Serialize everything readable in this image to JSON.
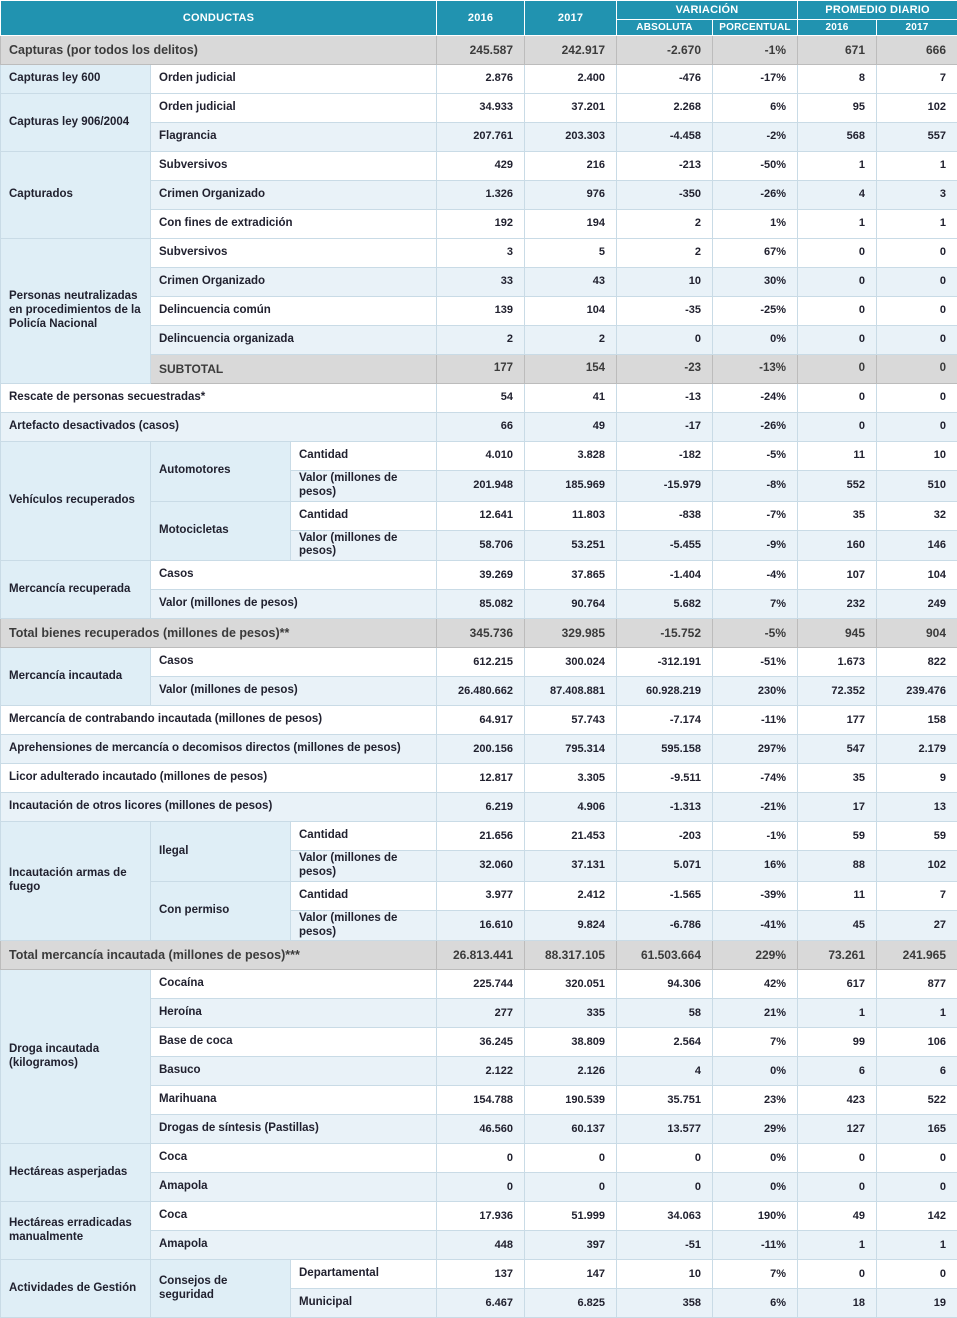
{
  "colors": {
    "header_bg": "#2193b0",
    "header_text": "#ffffff",
    "total_row_bg": "#d9d9d9",
    "stripe_bg": "#e9f2f8",
    "group_label_bg": "#dfeef6"
  },
  "table": {
    "header": {
      "conductas": "CONDUCTAS",
      "col_2016": "2016",
      "col_2017": "2017",
      "variacion": "VARIACIÓN",
      "absoluta": "ABSOLUTA",
      "porcentual": "PORCENTUAL",
      "promedio_diario": "PROMEDIO DIARIO",
      "prom_2016": "2016",
      "prom_2017": "2017"
    },
    "rows": [
      {
        "style": "total",
        "labels": [
          {
            "text": "Capturas (por todos los delitos)",
            "colspan": 3
          }
        ],
        "values": [
          "245.587",
          "242.917",
          "-2.670",
          "-1%",
          "671",
          "666"
        ]
      },
      {
        "labels": [
          {
            "text": "Capturas ley 600",
            "kind": "g"
          },
          {
            "text": "Orden judicial",
            "colspan": 2
          }
        ],
        "values": [
          "2.876",
          "2.400",
          "-476",
          "-17%",
          "8",
          "7"
        ]
      },
      {
        "labels": [
          {
            "text": "Capturas ley 906/2004",
            "kind": "g",
            "rowspan": 2
          },
          {
            "text": "Orden judicial",
            "colspan": 2
          }
        ],
        "values": [
          "34.933",
          "37.201",
          "2.268",
          "6%",
          "95",
          "102"
        ]
      },
      {
        "labels": [
          {
            "text": "Flagrancia",
            "colspan": 2
          }
        ],
        "values": [
          "207.761",
          "203.303",
          "-4.458",
          "-2%",
          "568",
          "557"
        ]
      },
      {
        "labels": [
          {
            "text": "Capturados",
            "kind": "g",
            "rowspan": 3
          },
          {
            "text": "Subversivos",
            "colspan": 2
          }
        ],
        "values": [
          "429",
          "216",
          "-213",
          "-50%",
          "1",
          "1"
        ]
      },
      {
        "labels": [
          {
            "text": "Crimen Organizado",
            "colspan": 2
          }
        ],
        "values": [
          "1.326",
          "976",
          "-350",
          "-26%",
          "4",
          "3"
        ]
      },
      {
        "labels": [
          {
            "text": "Con fines de extradición",
            "colspan": 2
          }
        ],
        "values": [
          "192",
          "194",
          "2",
          "1%",
          "1",
          "1"
        ]
      },
      {
        "labels": [
          {
            "text": "Personas neutralizadas en procedimientos de la Policía Nacional",
            "kind": "g",
            "rowspan": 5
          },
          {
            "text": "Subversivos",
            "colspan": 2
          }
        ],
        "values": [
          "3",
          "5",
          "2",
          "67%",
          "0",
          "0"
        ]
      },
      {
        "labels": [
          {
            "text": "Crimen Organizado",
            "colspan": 2
          }
        ],
        "values": [
          "33",
          "43",
          "10",
          "30%",
          "0",
          "0"
        ]
      },
      {
        "labels": [
          {
            "text": "Delincuencia común",
            "colspan": 2
          }
        ],
        "values": [
          "139",
          "104",
          "-35",
          "-25%",
          "0",
          "0"
        ]
      },
      {
        "labels": [
          {
            "text": "Delincuencia organizada",
            "colspan": 2
          }
        ],
        "values": [
          "2",
          "2",
          "0",
          "0%",
          "0",
          "0"
        ]
      },
      {
        "style": "subtotal",
        "labels": [
          {
            "text": "SUBTOTAL",
            "colspan": 2
          }
        ],
        "values": [
          "177",
          "154",
          "-23",
          "-13%",
          "0",
          "0"
        ]
      },
      {
        "labels": [
          {
            "text": "Rescate de personas secuestradas*",
            "colspan": 3
          }
        ],
        "values": [
          "54",
          "41",
          "-13",
          "-24%",
          "0",
          "0"
        ]
      },
      {
        "labels": [
          {
            "text": "Artefacto desactivados (casos)",
            "colspan": 3
          }
        ],
        "values": [
          "66",
          "49",
          "-17",
          "-26%",
          "0",
          "0"
        ]
      },
      {
        "labels": [
          {
            "text": "Vehículos recuperados",
            "kind": "g",
            "rowspan": 4
          },
          {
            "text": "Automotores",
            "kind": "g",
            "rowspan": 2
          },
          {
            "text": "Cantidad"
          }
        ],
        "values": [
          "4.010",
          "3.828",
          "-182",
          "-5%",
          "11",
          "10"
        ]
      },
      {
        "labels": [
          {
            "text": "Valor (millones de pesos)"
          }
        ],
        "values": [
          "201.948",
          "185.969",
          "-15.979",
          "-8%",
          "552",
          "510"
        ]
      },
      {
        "labels": [
          {
            "text": "Motocicletas",
            "kind": "g",
            "rowspan": 2
          },
          {
            "text": "Cantidad"
          }
        ],
        "values": [
          "12.641",
          "11.803",
          "-838",
          "-7%",
          "35",
          "32"
        ]
      },
      {
        "labels": [
          {
            "text": "Valor (millones de pesos)"
          }
        ],
        "values": [
          "58.706",
          "53.251",
          "-5.455",
          "-9%",
          "160",
          "146"
        ]
      },
      {
        "labels": [
          {
            "text": "Mercancía recuperada",
            "kind": "g",
            "rowspan": 2
          },
          {
            "text": "Casos",
            "colspan": 2
          }
        ],
        "values": [
          "39.269",
          "37.865",
          "-1.404",
          "-4%",
          "107",
          "104"
        ]
      },
      {
        "labels": [
          {
            "text": "Valor (millones de pesos)",
            "colspan": 2
          }
        ],
        "values": [
          "85.082",
          "90.764",
          "5.682",
          "7%",
          "232",
          "249"
        ]
      },
      {
        "style": "total",
        "labels": [
          {
            "text": "Total bienes recuperados (millones de pesos)**",
            "colspan": 3
          }
        ],
        "values": [
          "345.736",
          "329.985",
          "-15.752",
          "-5%",
          "945",
          "904"
        ]
      },
      {
        "labels": [
          {
            "text": "Mercancía incautada",
            "kind": "g",
            "rowspan": 2
          },
          {
            "text": "Casos",
            "colspan": 2
          }
        ],
        "values": [
          "612.215",
          "300.024",
          "-312.191",
          "-51%",
          "1.673",
          "822"
        ]
      },
      {
        "labels": [
          {
            "text": "Valor (millones de pesos)",
            "colspan": 2
          }
        ],
        "values": [
          "26.480.662",
          "87.408.881",
          "60.928.219",
          "230%",
          "72.352",
          "239.476"
        ]
      },
      {
        "labels": [
          {
            "text": "Mercancía de contrabando incautada (millones de pesos)",
            "colspan": 3
          }
        ],
        "values": [
          "64.917",
          "57.743",
          "-7.174",
          "-11%",
          "177",
          "158"
        ]
      },
      {
        "labels": [
          {
            "text": "Aprehensiones de mercancía o decomisos directos (millones de pesos)",
            "colspan": 3
          }
        ],
        "values": [
          "200.156",
          "795.314",
          "595.158",
          "297%",
          "547",
          "2.179"
        ]
      },
      {
        "labels": [
          {
            "text": "Licor adulterado incautado (millones de pesos)",
            "colspan": 3
          }
        ],
        "values": [
          "12.817",
          "3.305",
          "-9.511",
          "-74%",
          "35",
          "9"
        ]
      },
      {
        "labels": [
          {
            "text": "Incautación de otros licores (millones de pesos)",
            "colspan": 3
          }
        ],
        "values": [
          "6.219",
          "4.906",
          "-1.313",
          "-21%",
          "17",
          "13"
        ]
      },
      {
        "labels": [
          {
            "text": "Incautación armas de fuego",
            "kind": "g",
            "rowspan": 4
          },
          {
            "text": "Ilegal",
            "kind": "g",
            "rowspan": 2
          },
          {
            "text": "Cantidad"
          }
        ],
        "values": [
          "21.656",
          "21.453",
          "-203",
          "-1%",
          "59",
          "59"
        ]
      },
      {
        "labels": [
          {
            "text": "Valor (millones de pesos)"
          }
        ],
        "values": [
          "32.060",
          "37.131",
          "5.071",
          "16%",
          "88",
          "102"
        ]
      },
      {
        "labels": [
          {
            "text": "Con permiso",
            "kind": "g",
            "rowspan": 2
          },
          {
            "text": "Cantidad"
          }
        ],
        "values": [
          "3.977",
          "2.412",
          "-1.565",
          "-39%",
          "11",
          "7"
        ]
      },
      {
        "labels": [
          {
            "text": "Valor (millones de pesos)"
          }
        ],
        "values": [
          "16.610",
          "9.824",
          "-6.786",
          "-41%",
          "45",
          "27"
        ]
      },
      {
        "style": "total",
        "labels": [
          {
            "text": "Total mercancía incautada (millones de pesos)***",
            "colspan": 3
          }
        ],
        "values": [
          "26.813.441",
          "88.317.105",
          "61.503.664",
          "229%",
          "73.261",
          "241.965"
        ]
      },
      {
        "labels": [
          {
            "text": "Droga incautada (kilogramos)",
            "kind": "g",
            "rowspan": 6
          },
          {
            "text": "Cocaína",
            "colspan": 2
          }
        ],
        "values": [
          "225.744",
          "320.051",
          "94.306",
          "42%",
          "617",
          "877"
        ]
      },
      {
        "labels": [
          {
            "text": "Heroína",
            "colspan": 2
          }
        ],
        "values": [
          "277",
          "335",
          "58",
          "21%",
          "1",
          "1"
        ]
      },
      {
        "labels": [
          {
            "text": "Base de coca",
            "colspan": 2
          }
        ],
        "values": [
          "36.245",
          "38.809",
          "2.564",
          "7%",
          "99",
          "106"
        ]
      },
      {
        "labels": [
          {
            "text": "Basuco",
            "colspan": 2
          }
        ],
        "values": [
          "2.122",
          "2.126",
          "4",
          "0%",
          "6",
          "6"
        ]
      },
      {
        "labels": [
          {
            "text": "Marihuana",
            "colspan": 2
          }
        ],
        "values": [
          "154.788",
          "190.539",
          "35.751",
          "23%",
          "423",
          "522"
        ]
      },
      {
        "labels": [
          {
            "text": "Drogas de síntesis (Pastillas)",
            "colspan": 2
          }
        ],
        "values": [
          "46.560",
          "60.137",
          "13.577",
          "29%",
          "127",
          "165"
        ]
      },
      {
        "labels": [
          {
            "text": "Hectáreas asperjadas",
            "kind": "g",
            "rowspan": 2
          },
          {
            "text": "Coca",
            "colspan": 2
          }
        ],
        "values": [
          "0",
          "0",
          "0",
          "0%",
          "0",
          "0"
        ]
      },
      {
        "labels": [
          {
            "text": "Amapola",
            "colspan": 2
          }
        ],
        "values": [
          "0",
          "0",
          "0",
          "0%",
          "0",
          "0"
        ]
      },
      {
        "labels": [
          {
            "text": "Hectáreas erradicadas manualmente",
            "kind": "g",
            "rowspan": 2
          },
          {
            "text": "Coca",
            "colspan": 2
          }
        ],
        "values": [
          "17.936",
          "51.999",
          "34.063",
          "190%",
          "49",
          "142"
        ]
      },
      {
        "labels": [
          {
            "text": "Amapola",
            "colspan": 2
          }
        ],
        "values": [
          "448",
          "397",
          "-51",
          "-11%",
          "1",
          "1"
        ]
      },
      {
        "labels": [
          {
            "text": "Actividades de Gestión",
            "kind": "g",
            "rowspan": 2
          },
          {
            "text": "Consejos de seguridad",
            "kind": "g",
            "rowspan": 2
          },
          {
            "text": "Departamental"
          }
        ],
        "values": [
          "137",
          "147",
          "10",
          "7%",
          "0",
          "0"
        ]
      },
      {
        "labels": [
          {
            "text": "Municipal"
          }
        ],
        "values": [
          "6.467",
          "6.825",
          "358",
          "6%",
          "18",
          "19"
        ]
      }
    ]
  }
}
